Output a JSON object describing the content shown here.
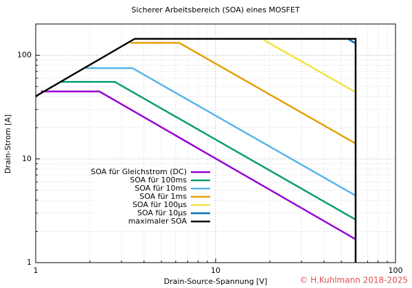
{
  "chart_data": {
    "type": "line",
    "title": "Sicherer Arbeitsbereich (SOA) eines MOSFET",
    "x_label": "Drain-Source-Spannung [V]",
    "y_label": "Drain-Strom [A]",
    "credit": "© H.Kuhlmann 2018-2025",
    "log_x": true,
    "log_y": true,
    "grid": true,
    "minor_grid": true,
    "legend": "left",
    "xlim": [
      1,
      100
    ],
    "ylim": [
      1,
      200
    ],
    "xticks": [
      1,
      10,
      100
    ],
    "yticks": [
      1,
      10,
      100
    ],
    "series": [
      {
        "name": "SOA für Gleichstrom (DC)",
        "color": "#9400d3",
        "x": [
          1.07,
          2.26,
          60
        ],
        "values": [
          44.7,
          44.7,
          1.68
        ]
      },
      {
        "name": "SOA für 100ms",
        "color": "#009e73",
        "x": [
          1.37,
          2.75,
          60
        ],
        "values": [
          55.4,
          55.4,
          2.6
        ]
      },
      {
        "name": "SOA für 10ms",
        "color": "#56b4e9",
        "x": [
          1.9,
          3.45,
          60
        ],
        "values": [
          75,
          75,
          4.43
        ]
      },
      {
        "name": "SOA für 1ms",
        "color": "#e69f00",
        "x": [
          3.36,
          6.28,
          60
        ],
        "values": [
          131.5,
          131.5,
          14.1
        ]
      },
      {
        "name": "SOA für 100µs",
        "color": "#f0e442",
        "x": [
          18.3,
          60
        ],
        "values": [
          142,
          44
        ]
      },
      {
        "name": "SOA für 10µs",
        "color": "#0072b2",
        "x": [
          55,
          60
        ],
        "values": [
          142,
          130
        ]
      },
      {
        "name": "maximaler SOA",
        "color": "#000000",
        "x": [
          1,
          3.55,
          60,
          60
        ],
        "values": [
          40.2,
          144,
          144,
          1
        ]
      }
    ]
  }
}
